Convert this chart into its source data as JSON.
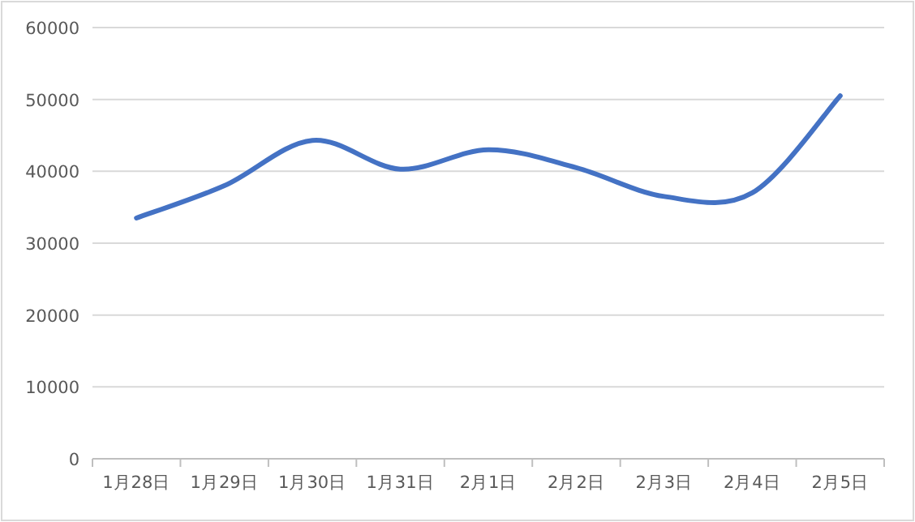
{
  "chart_data": {
    "type": "line",
    "categories": [
      "1月28日",
      "1月29日",
      "1月30日",
      "1月31日",
      "2月1日",
      "2月2日",
      "2月3日",
      "2月4日",
      "2月5日"
    ],
    "series": [
      {
        "color": "#4472c4",
        "values": [
          33500,
          38000,
          44300,
          40300,
          43000,
          40500,
          36500,
          37000,
          50500
        ]
      }
    ],
    "ylim": [
      0,
      60000
    ],
    "yticks": [
      0,
      10000,
      20000,
      30000,
      40000,
      50000,
      60000
    ],
    "grid": "y",
    "marker": "none",
    "line_style": "solid"
  }
}
